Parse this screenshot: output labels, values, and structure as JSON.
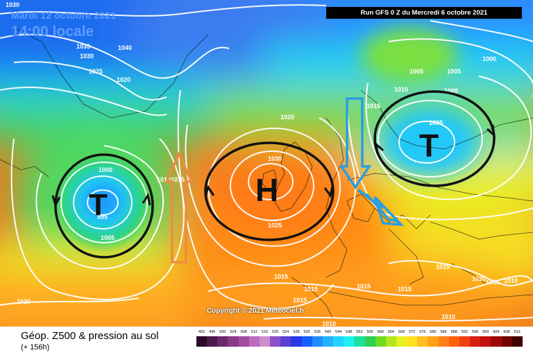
{
  "header": {
    "date": "Mardi 12 octobre 2021",
    "time": "14:00 locale",
    "run": "Run GFS 0 Z du Mercredi 6 octobre 2021"
  },
  "copyright": "Copyright © 2021 Meteociel.fr",
  "footer": {
    "product": "Géop. Z500 & pression au sol",
    "horizon": "(+ 156h)"
  },
  "scale": {
    "labels": [
      "492",
      "496",
      "500",
      "504",
      "508",
      "512",
      "516",
      "520",
      "524",
      "528",
      "532",
      "536",
      "540",
      "544",
      "548",
      "552",
      "556",
      "560",
      "564",
      "568",
      "572",
      "576",
      "580",
      "584",
      "588",
      "592",
      "596",
      "600",
      "604",
      "608",
      "612"
    ],
    "colors": [
      "#2a0a2a",
      "#4a1a4a",
      "#6a2a6a",
      "#8a3a8a",
      "#a34da3",
      "#bd6abd",
      "#cf8dcf",
      "#8a50c8",
      "#5d3fd0",
      "#2a3ae8",
      "#1460ff",
      "#1f8cff",
      "#20b4ff",
      "#20d4ff",
      "#20f0f0",
      "#20e0a0",
      "#30d050",
      "#70dc20",
      "#b0e820",
      "#e8f020",
      "#ffe020",
      "#ffc020",
      "#ffa018",
      "#ff8018",
      "#ff6010",
      "#f04010",
      "#d82010",
      "#c01010",
      "#a00808",
      "#700404",
      "#400000"
    ]
  },
  "systems": [
    {
      "id": "low-west",
      "letter": "T"
    },
    {
      "id": "high",
      "letter": "H"
    },
    {
      "id": "low-east",
      "letter": "T"
    }
  ],
  "isobar_labels": [
    "1030",
    "1035",
    "1030",
    "1040",
    "1025",
    "1020",
    "1000",
    "995",
    "1005",
    "1010",
    "1015",
    "1020",
    "1030",
    "1025",
    "1015",
    "1010",
    "1005",
    "1005",
    "1000",
    "1005",
    "1015",
    "1015",
    "1015",
    "1015",
    "1015",
    "1015",
    "1010",
    "1010",
    "1010",
    "1010",
    "1020",
    "1020",
    "1005"
  ]
}
